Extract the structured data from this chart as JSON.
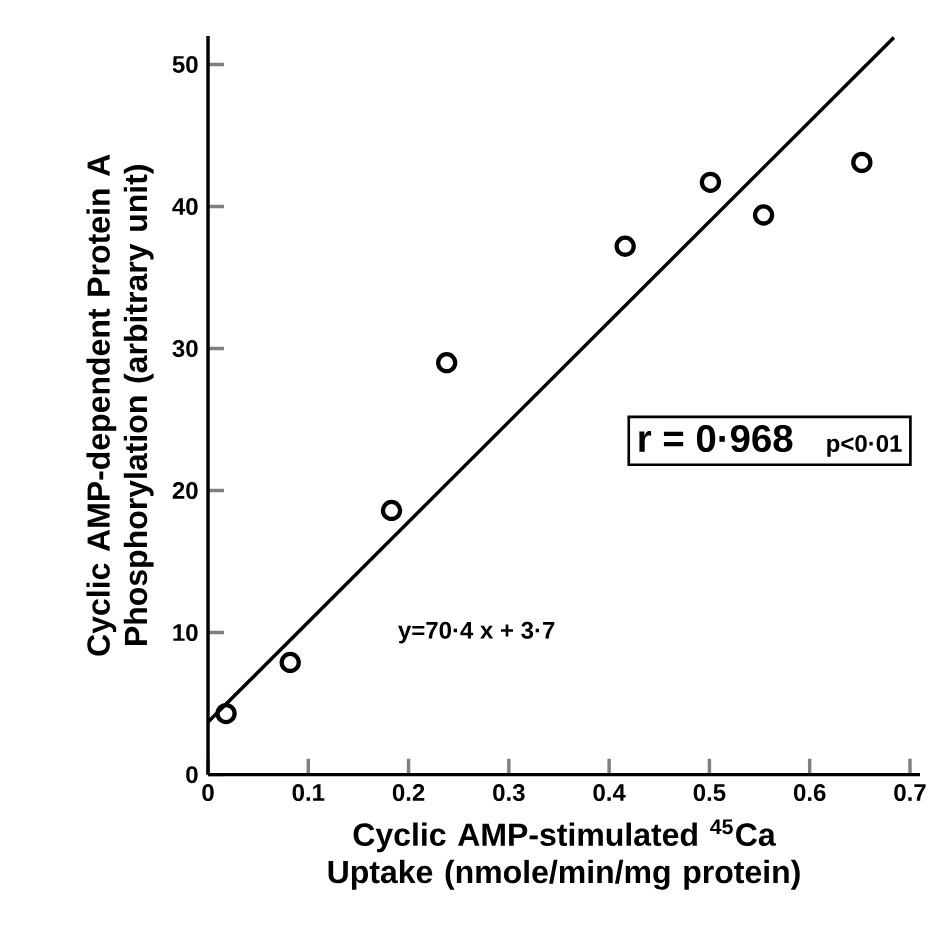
{
  "chart_data": {
    "type": "scatter",
    "xlabel": "Cyclic AMP-stimulated $^{45}$Ca Uptake (nmole/min/mg protein)",
    "ylabel": "Cyclic AMP-dependent Protein A Phosphorylation (arbitrary unit)",
    "x": [
      0.018,
      0.082,
      0.183,
      0.238,
      0.416,
      0.501,
      0.554,
      0.652
    ],
    "series": [
      {
        "color": "#000000",
        "marker": "circle",
        "values": [
          4.3,
          7.9,
          18.6,
          29.0,
          37.2,
          41.7,
          39.4,
          43.1
        ]
      },
      {
        "type": "line",
        "color": "#000000",
        "x": [
          0,
          0.684
        ],
        "values": [
          3.7,
          51.9
        ]
      }
    ],
    "xlim": [
      0,
      0.71
    ],
    "ylim": [
      0,
      52
    ],
    "xticks": [
      0,
      0.1,
      0.2,
      0.3,
      0.4,
      0.5,
      0.6,
      0.7
    ],
    "yticks": [
      0,
      10,
      20,
      30,
      40,
      50
    ],
    "annotations": [
      "r = 0·968",
      "p<0·01",
      "y=70·4 x + 3·7"
    ],
    "grid": false
  }
}
